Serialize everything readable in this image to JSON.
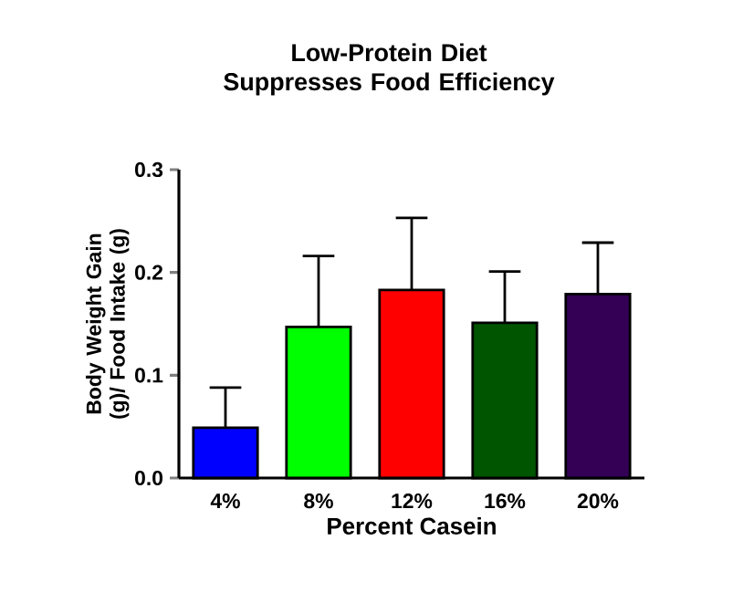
{
  "chart_data": {
    "type": "bar",
    "title": "Low-Protein  Diet Suppresses Food  Efficiency",
    "xlabel": "Percent  Casein",
    "ylabel": "Body Weight Gain (g)/ Food Intake (g)",
    "categories": [
      "4%",
      "8%",
      "12%",
      "16%",
      "20%"
    ],
    "values": [
      0.049,
      0.147,
      0.183,
      0.151,
      0.179
    ],
    "errors": [
      [
        0.049,
        0.088
      ],
      [
        0.147,
        0.216
      ],
      [
        0.183,
        0.253
      ],
      [
        0.151,
        0.201
      ],
      [
        0.179,
        0.229
      ]
    ],
    "colors": [
      "#0000ff",
      "#00ff00",
      "#ff0000",
      "#005500",
      "#330055"
    ],
    "ylim": [
      0,
      0.3
    ],
    "yticks": [
      {
        "value": 0,
        "label": "0.0"
      },
      {
        "value": 0.1,
        "label": "0.1"
      },
      {
        "value": 0.2,
        "label": "0.2"
      },
      {
        "value": 0.3,
        "label": "0.3"
      }
    ],
    "grid": false
  }
}
